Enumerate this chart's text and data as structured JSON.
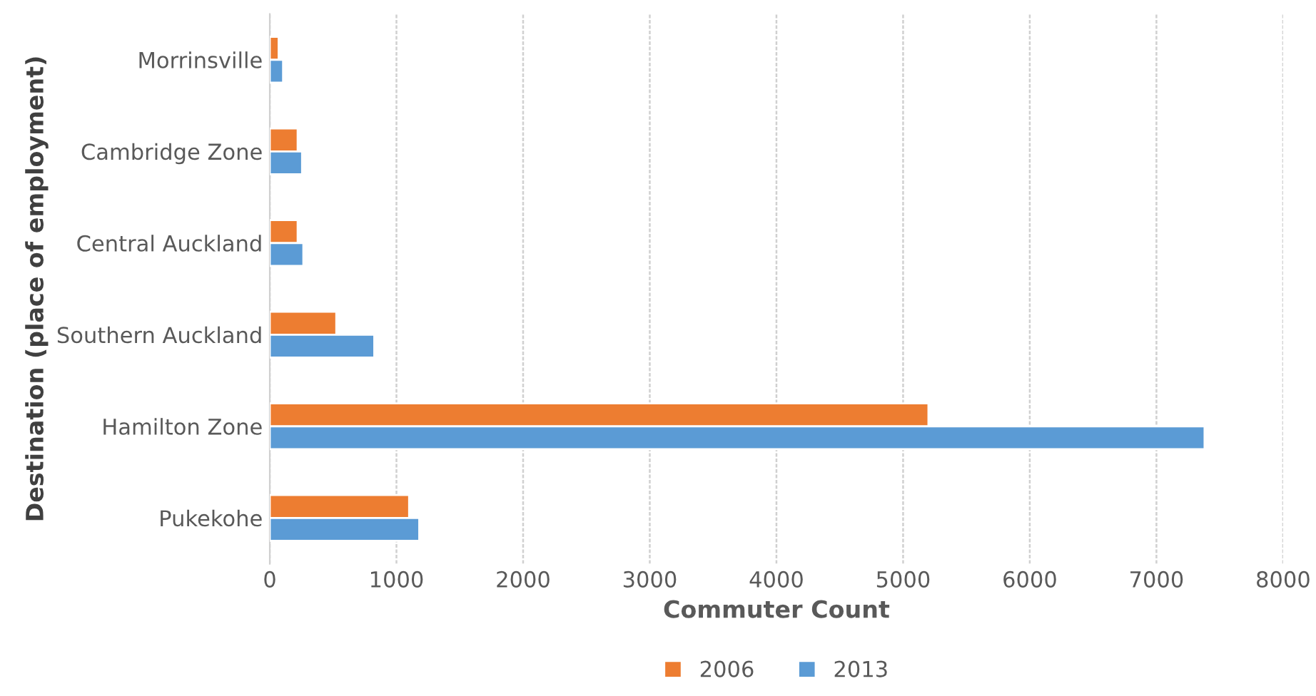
{
  "chart_data": {
    "type": "bar",
    "orientation": "horizontal",
    "xlabel": "Commuter Count",
    "ylabel": "Destination (place of employment)",
    "categories": [
      "Morrinsville",
      "Cambridge Zone",
      "Central Auckland",
      "Southern Auckland",
      "Hamilton Zone",
      "Pukekohe"
    ],
    "series": [
      {
        "name": "2006",
        "color": "#ed7d31",
        "values": [
          70,
          220,
          220,
          525,
          5200,
          1100
        ]
      },
      {
        "name": "2013",
        "color": "#5b9bd5",
        "values": [
          105,
          255,
          265,
          825,
          7380,
          1180
        ]
      }
    ],
    "xlim": [
      0,
      8000
    ],
    "xticks": [
      0,
      1000,
      2000,
      3000,
      4000,
      5000,
      6000,
      7000,
      8000
    ],
    "grid": "x",
    "legend": "bottom"
  }
}
